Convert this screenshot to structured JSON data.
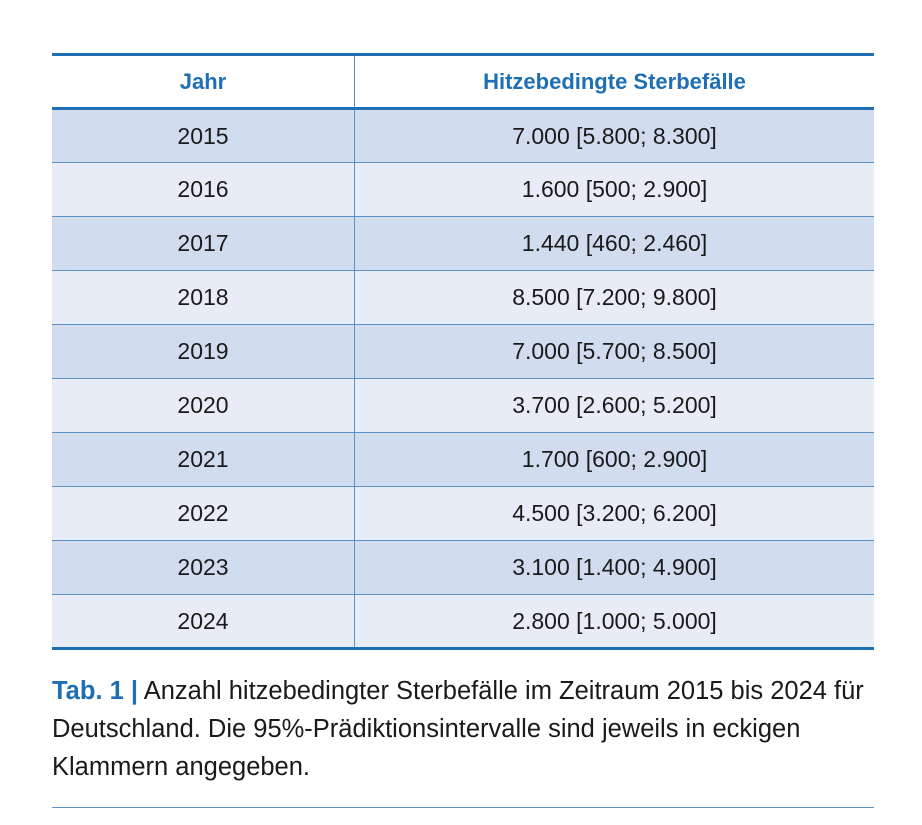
{
  "table": {
    "headers": {
      "year": "Jahr",
      "deaths": "Hitzebedingte Sterbefälle"
    },
    "rows": [
      {
        "year": "2015",
        "deaths": "7.000 [5.800; 8.300]"
      },
      {
        "year": "2016",
        "deaths": "1.600 [500; 2.900]"
      },
      {
        "year": "2017",
        "deaths": "1.440 [460; 2.460]"
      },
      {
        "year": "2018",
        "deaths": "8.500 [7.200; 9.800]"
      },
      {
        "year": "2019",
        "deaths": "7.000 [5.700; 8.500]"
      },
      {
        "year": "2020",
        "deaths": "3.700 [2.600; 5.200]"
      },
      {
        "year": "2021",
        "deaths": "1.700 [600; 2.900]"
      },
      {
        "year": "2022",
        "deaths": "4.500 [3.200; 6.200]"
      },
      {
        "year": "2023",
        "deaths": "3.100 [1.400; 4.900]"
      },
      {
        "year": "2024",
        "deaths": "2.800 [1.000; 5.000]"
      }
    ]
  },
  "caption": {
    "label": "Tab. 1 |",
    "text": " Anzahl hitzebedingter Sterbefälle im Zeitraum 2015 bis 2024 für Deutschland. Die 95%-Prädiktionsintervalle sind jeweils in eckigen Klammern angegeben."
  },
  "colors": {
    "accent": "#1e6fb4",
    "row_dark": "#d1ddef",
    "row_light": "#e8ecf7",
    "grid_line": "#5b93c9"
  }
}
